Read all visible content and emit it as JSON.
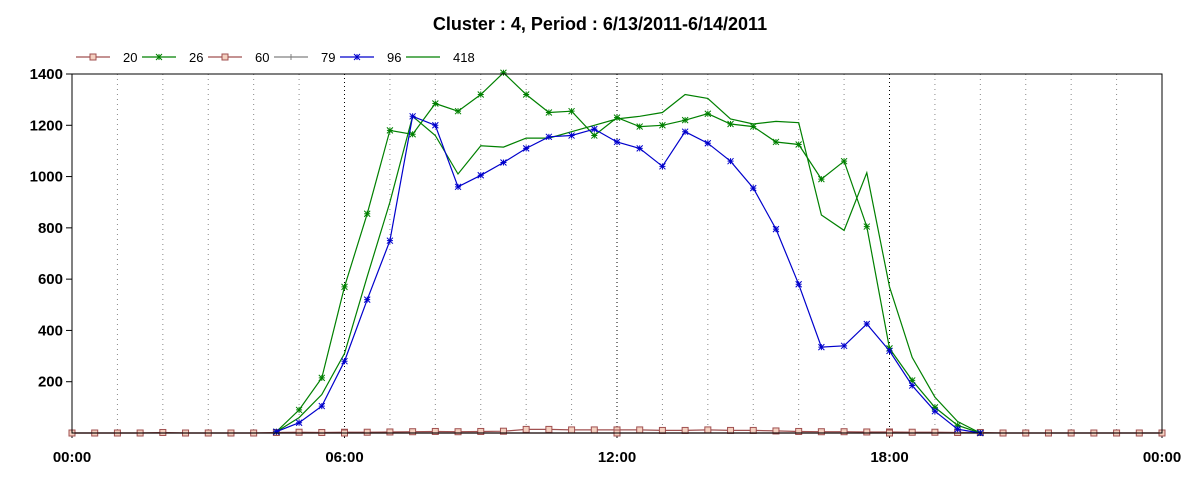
{
  "chart_data": {
    "type": "line",
    "title": "Cluster : 4, Period : 6/13/2011-6/14/2011",
    "xlabel": "",
    "ylabel": "",
    "x_tick_labels": [
      "00:00",
      "06:00",
      "12:00",
      "18:00",
      "00:00"
    ],
    "y_ticks": [
      200,
      400,
      600,
      800,
      1000,
      1200,
      1400
    ],
    "ylim": [
      0,
      1400
    ],
    "xlim": [
      0,
      24
    ],
    "grid": "vertical dotted",
    "legend_placement": "top-left",
    "series": [
      {
        "name": "20",
        "color": "#a05050",
        "marker": "square",
        "x": [
          0,
          0.5,
          1,
          1.5,
          2,
          2.5,
          3,
          3.5,
          4,
          4.5,
          5,
          5.5,
          6,
          6.5,
          7,
          7.5,
          8,
          8.5,
          9,
          9.5,
          10,
          10.5,
          11,
          11.5,
          12,
          12.5,
          13,
          13.5,
          14,
          14.5,
          15,
          15.5,
          16,
          16.5,
          17,
          17.5,
          18,
          18.5,
          19,
          19.5,
          20,
          20.5,
          21,
          21.5,
          22,
          22.5,
          23,
          23.5,
          24
        ],
        "values": [
          0,
          0,
          0,
          0,
          2,
          0,
          0,
          0,
          0,
          2,
          3,
          2,
          3,
          3,
          4,
          5,
          6,
          5,
          6,
          7,
          14,
          14,
          12,
          12,
          12,
          12,
          10,
          10,
          12,
          10,
          10,
          8,
          6,
          5,
          5,
          4,
          4,
          3,
          3,
          2,
          2,
          0,
          0,
          0,
          0,
          0,
          0,
          0,
          0
        ]
      },
      {
        "name": "26",
        "color": "#008000",
        "marker": "asterisk",
        "x": [
          4.5,
          5,
          5.5,
          6,
          6.5,
          7,
          7.5,
          8,
          8.5,
          9,
          9.5,
          10,
          10.5,
          11,
          11.5,
          12,
          12.5,
          13,
          13.5,
          14,
          14.5,
          15,
          15.5,
          16,
          16.5,
          17,
          17.5,
          18,
          18.5,
          19,
          19.5,
          20
        ],
        "values": [
          5,
          90,
          215,
          570,
          855,
          1180,
          1165,
          1285,
          1255,
          1320,
          1405,
          1320,
          1250,
          1255,
          1160,
          1230,
          1195,
          1200,
          1220,
          1245,
          1205,
          1195,
          1135,
          1125,
          990,
          1060,
          805,
          330,
          205,
          100,
          30,
          0
        ]
      },
      {
        "name": "60",
        "color": "#a05050",
        "marker": "square",
        "x": [
          0,
          6,
          12,
          18,
          24
        ],
        "values": [
          0,
          0,
          0,
          0,
          0
        ]
      },
      {
        "name": "79",
        "color": "#808080",
        "marker": "plus",
        "x": [
          0,
          4,
          24
        ],
        "values": [
          0,
          0,
          0
        ]
      },
      {
        "name": "96",
        "color": "#0000cc",
        "marker": "asterisk",
        "x": [
          4.5,
          5,
          5.5,
          6,
          6.5,
          7,
          7.5,
          8,
          8.5,
          9,
          9.5,
          10,
          10.5,
          11,
          11.5,
          12,
          12.5,
          13,
          13.5,
          14,
          14.5,
          15,
          15.5,
          16,
          16.5,
          17,
          17.5,
          18,
          18.5,
          19,
          19.5,
          20
        ],
        "values": [
          5,
          40,
          105,
          280,
          520,
          750,
          1235,
          1200,
          960,
          1005,
          1055,
          1110,
          1155,
          1160,
          1185,
          1135,
          1110,
          1040,
          1175,
          1130,
          1060,
          955,
          795,
          580,
          335,
          340,
          425,
          320,
          185,
          85,
          15,
          0
        ]
      },
      {
        "name": "418",
        "color": "#008000",
        "marker": "none",
        "x": [
          4.5,
          5,
          5.5,
          6,
          6.5,
          7,
          7.5,
          8,
          8.5,
          9,
          9.5,
          10,
          10.5,
          11,
          11.5,
          12,
          12.5,
          13,
          13.5,
          14,
          14.5,
          15,
          15.5,
          16,
          16.5,
          17,
          17.5,
          18,
          18.5,
          19,
          19.5,
          20
        ],
        "values": [
          5,
          60,
          150,
          310,
          610,
          900,
          1235,
          1160,
          1010,
          1120,
          1115,
          1150,
          1150,
          1175,
          1200,
          1225,
          1235,
          1250,
          1320,
          1305,
          1225,
          1205,
          1215,
          1210,
          850,
          790,
          1015,
          570,
          295,
          140,
          45,
          0
        ]
      }
    ]
  }
}
